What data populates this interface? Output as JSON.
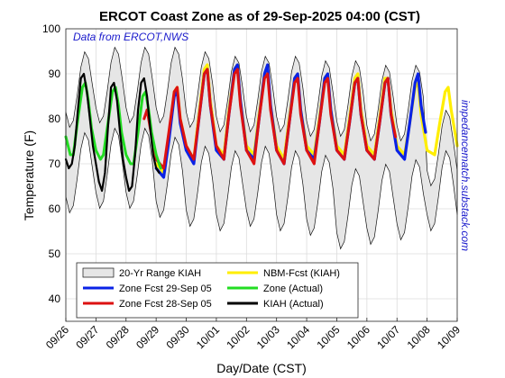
{
  "chart_data": {
    "type": "line",
    "title": "ERCOT Coast Zone as of 29-Sep-2025 04:00 (CST)",
    "xlabel": "Day/Date (CST)",
    "ylabel": "Temperature (F)",
    "source_note": "Data from ERCOT,NWS",
    "watermark": "impedancematch.substack.com",
    "ylim": [
      35,
      100
    ],
    "yticks": [
      40,
      50,
      60,
      70,
      80,
      90,
      100
    ],
    "xlim": [
      0,
      13
    ],
    "xtick_labels": [
      "09/26",
      "09/27",
      "09/28",
      "09/29",
      "09/30",
      "10/01",
      "10/02",
      "10/03",
      "10/04",
      "10/05",
      "10/06",
      "10/07",
      "10/08",
      "10/09"
    ],
    "grid": true,
    "legend_position": "bottom-left",
    "range_band": {
      "name": "20-Yr Range KIAH",
      "color": "#e6e6e6",
      "min_lows": [
        59,
        60,
        60,
        58,
        56,
        55,
        56,
        55,
        54,
        51,
        52,
        53,
        55
      ],
      "max_highs": [
        95,
        96,
        96,
        96,
        95,
        94,
        94,
        94,
        93,
        93,
        92,
        92,
        82
      ]
    },
    "series": [
      {
        "name": "NBM-Fcst (KIAH)",
        "color": "#ffee00",
        "x": [
          3.0,
          3.25,
          3.42,
          3.6,
          3.7,
          3.8,
          4.0,
          4.25,
          4.42,
          4.6,
          4.7,
          4.8,
          5.0,
          5.25,
          5.42,
          5.6,
          5.7,
          5.8,
          6.0,
          6.25,
          6.42,
          6.6,
          6.7,
          6.8,
          7.0,
          7.25,
          7.42,
          7.6,
          7.7,
          7.8,
          8.0,
          8.25,
          8.42,
          8.6,
          8.7,
          8.8,
          9.0,
          9.25,
          9.42,
          9.6,
          9.7,
          9.8,
          10.0,
          10.25,
          10.42,
          10.6,
          10.7,
          10.8,
          11.0,
          11.25,
          11.42,
          11.6,
          11.7,
          11.8,
          12.0,
          12.25,
          12.42,
          12.6,
          12.7,
          12.8,
          13.0
        ],
        "y": [
          70,
          68,
          76,
          86,
          87,
          80,
          74,
          71,
          81,
          91,
          92,
          84,
          74,
          72,
          82,
          91,
          92,
          84,
          74,
          72,
          81,
          90,
          91,
          83,
          74,
          71,
          80,
          89,
          90,
          82,
          74,
          72,
          80,
          89,
          90,
          82,
          74,
          72,
          80,
          89,
          90,
          82,
          74,
          72,
          80,
          89,
          89,
          82,
          74,
          72,
          79,
          87,
          88,
          81,
          73,
          72,
          79,
          86,
          87,
          82,
          74
        ]
      },
      {
        "name": "Zone Fcst 29-Sep 05",
        "color": "#0a22e6",
        "x": [
          3.0,
          3.25,
          3.42,
          3.6,
          3.7,
          3.8,
          4.0,
          4.25,
          4.42,
          4.6,
          4.7,
          4.8,
          5.0,
          5.25,
          5.42,
          5.6,
          5.7,
          5.8,
          6.0,
          6.25,
          6.42,
          6.6,
          6.7,
          6.8,
          7.0,
          7.25,
          7.42,
          7.6,
          7.7,
          7.8,
          8.0,
          8.25,
          8.42,
          8.6,
          8.7,
          8.8,
          9.0,
          9.25,
          9.42,
          9.6,
          9.7,
          9.8,
          10.0,
          10.25,
          10.42,
          10.6,
          10.7,
          10.8,
          11.0,
          11.25,
          11.42,
          11.6,
          11.7,
          11.8,
          11.95
        ],
        "y": [
          69,
          67,
          75,
          85,
          86,
          79,
          73,
          70,
          80,
          90,
          91,
          83,
          73,
          71,
          81,
          91,
          92,
          84,
          73,
          71,
          80,
          90,
          92,
          83,
          73,
          70,
          79,
          89,
          90,
          82,
          73,
          71,
          79,
          89,
          90,
          82,
          73,
          71,
          79,
          88,
          89,
          81,
          73,
          71,
          79,
          88,
          89,
          81,
          73,
          71,
          79,
          88,
          90,
          83,
          77
        ]
      },
      {
        "name": "Zone Fcst 28-Sep 05",
        "color": "#dd1111",
        "x": [
          2.6,
          2.7,
          2.8,
          3.0,
          3.25,
          3.42,
          3.6,
          3.7,
          3.8,
          4.0,
          4.25,
          4.42,
          4.6,
          4.7,
          4.8,
          5.0,
          5.25,
          5.42,
          5.6,
          5.7,
          5.8,
          6.0,
          6.25,
          6.42,
          6.6,
          6.7,
          6.8,
          7.0,
          7.25,
          7.42,
          7.6,
          7.7,
          7.8,
          8.0,
          8.25,
          8.42,
          8.6,
          8.7,
          8.8,
          9.0,
          9.25,
          9.42,
          9.6,
          9.7,
          9.8,
          10.0,
          10.25,
          10.42,
          10.6,
          10.7,
          10.8,
          10.95
        ],
        "y": [
          80,
          82,
          78,
          71,
          69,
          77,
          86,
          87,
          80,
          74,
          71,
          80,
          90,
          91,
          83,
          74,
          71,
          81,
          90,
          91,
          83,
          73,
          70,
          80,
          89,
          90,
          82,
          73,
          70,
          79,
          88,
          89,
          81,
          73,
          70,
          79,
          88,
          89,
          81,
          73,
          71,
          79,
          88,
          89,
          81,
          73,
          71,
          79,
          88,
          89,
          81,
          76
        ]
      },
      {
        "name": "Zone (Actual)",
        "color": "#22dd22",
        "x": [
          0.0,
          0.15,
          0.25,
          0.4,
          0.55,
          0.65,
          0.75,
          0.85,
          1.0,
          1.15,
          1.25,
          1.4,
          1.55,
          1.65,
          1.75,
          1.85,
          2.0,
          2.15,
          2.25,
          2.4,
          2.55,
          2.65,
          2.75,
          2.85,
          3.0,
          3.15
        ],
        "y": [
          76,
          72,
          72,
          80,
          87,
          88,
          84,
          78,
          73,
          71,
          72,
          79,
          86,
          87,
          83,
          77,
          72,
          70,
          70,
          77,
          85,
          86,
          82,
          77,
          72,
          69
        ]
      },
      {
        "name": "KIAH (Actual)",
        "color": "#000000",
        "x": [
          0.0,
          0.1,
          0.2,
          0.3,
          0.4,
          0.5,
          0.6,
          0.7,
          0.8,
          0.9,
          1.0,
          1.1,
          1.2,
          1.3,
          1.4,
          1.5,
          1.6,
          1.7,
          1.8,
          1.9,
          2.0,
          2.1,
          2.2,
          2.3,
          2.4,
          2.5,
          2.6,
          2.7,
          2.8,
          2.9,
          3.0,
          3.1
        ],
        "y": [
          71,
          69,
          70,
          74,
          82,
          89,
          90,
          86,
          80,
          74,
          70,
          66,
          64,
          68,
          78,
          87,
          88,
          84,
          77,
          71,
          67,
          64,
          65,
          72,
          82,
          88,
          89,
          85,
          78,
          72,
          69,
          68
        ]
      }
    ],
    "legend_entries": [
      "20-Yr Range KIAH",
      "NBM-Fcst (KIAH)",
      "Zone Fcst 29-Sep 05",
      "Zone (Actual)",
      "Zone Fcst 28-Sep 05",
      "KIAH (Actual)"
    ]
  }
}
